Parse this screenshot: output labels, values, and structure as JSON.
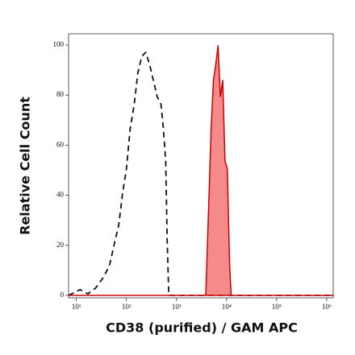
{
  "chart_data": {
    "type": "line",
    "xlabel": "CD38 (purified) / GAM APC",
    "ylabel": "Relative Cell Count",
    "xscale": "log",
    "xlim": [
      7,
      1350000
    ],
    "ylim": [
      -1,
      104.5
    ],
    "xticks": [
      {
        "value": 10,
        "label": "10¹"
      },
      {
        "value": 100,
        "label": "10²"
      },
      {
        "value": 1000,
        "label": "10³"
      },
      {
        "value": 10000,
        "label": "10⁴"
      },
      {
        "value": 100000,
        "label": "10⁵"
      },
      {
        "value": 1000000,
        "label": "10⁶"
      }
    ],
    "yticks": [
      0,
      20,
      40,
      60,
      80,
      100
    ],
    "grid": false,
    "series": [
      {
        "color": "#111111",
        "dashed": true,
        "x": [
          7,
          11.9,
          17,
          24.2,
          34.5,
          45.9,
          58.8,
          70.2,
          83.8,
          100,
          119,
          143,
          170,
          203,
          243,
          290,
          345,
          412,
          492,
          547,
          609,
          653,
          702,
          1350000
        ],
        "values": [
          0,
          2.3,
          0.6,
          2.9,
          7.1,
          11.9,
          21.5,
          28,
          40.8,
          50.5,
          66.6,
          76.2,
          89.1,
          95.5,
          97.1,
          92.3,
          85.9,
          79.4,
          76.2,
          66.6,
          53.7,
          21.5,
          0,
          0
        ]
      },
      {
        "color": "#cc0000",
        "fill": "#f48a8a",
        "dashed": false,
        "x": [
          7,
          3845,
          4430,
          4925,
          5470,
          6090,
          6770,
          7530,
          8380,
          9310,
          10360,
          11530,
          12360,
          1350000
        ],
        "values": [
          0,
          0,
          37.6,
          66.6,
          85.9,
          92.3,
          99.7,
          79.4,
          85.9,
          53.7,
          50.5,
          11.9,
          0,
          0
        ]
      }
    ]
  }
}
